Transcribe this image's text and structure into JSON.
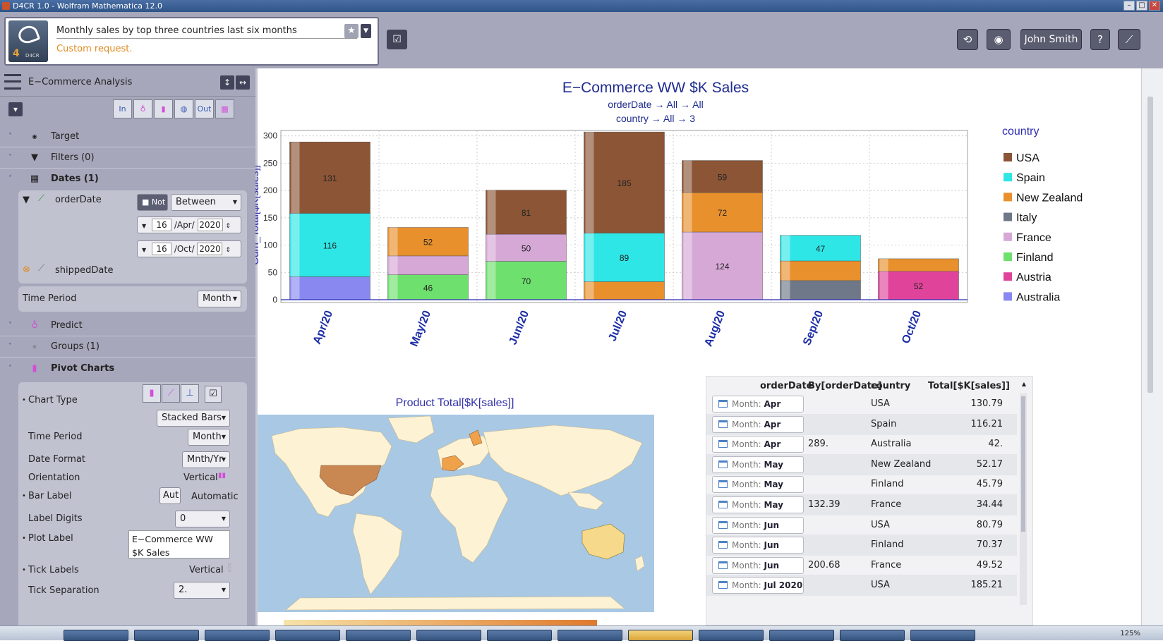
{
  "window": {
    "title": "D4CR 1.0 - Wolfram Mathematica 12.0"
  },
  "request": {
    "text": "Monthly sales by top three countries last six months",
    "subtitle": "Custom request.",
    "logo_label": "4",
    "logo_sub": "D4CR"
  },
  "toolbar": {
    "user": "John Smith",
    "help": "?"
  },
  "panel": {
    "title": "E−Commerce Analysis",
    "tool_labels": [
      "In",
      "",
      "",
      "",
      "Out",
      ""
    ]
  },
  "sections": {
    "target": "Target",
    "filters": "Filters (0)",
    "dates": "Dates (1)",
    "predict": "Predict",
    "groups": "Groups (1)",
    "pivot": "Pivot Charts"
  },
  "dates": {
    "field1": "orderDate",
    "not_label": "Not",
    "op": "Between",
    "start": {
      "day": "16",
      "month": "Apr",
      "year": "2020"
    },
    "end": {
      "day": "16",
      "month": "Oct",
      "year": "2020"
    },
    "field2": "shippedDate",
    "time_period_label": "Time Period",
    "time_period": "Month",
    "sep": "/"
  },
  "pivot": {
    "chart_type_label": "Chart Type",
    "chart_type": "Stacked Bars",
    "time_period_label": "Time Period",
    "time_period": "Month",
    "date_format_label": "Date Format",
    "date_format": "Mnth/Yr",
    "orientation_label": "Orientation",
    "orientation": "Vertical",
    "bar_label_label": "Bar Label",
    "bar_label_btn": "Aut",
    "bar_label": "Automatic",
    "label_digits_label": "Label Digits",
    "label_digits": "0",
    "plot_label_label": "Plot Label",
    "plot_label": "E−Commerce WW $K Sales",
    "tick_labels_label": "Tick Labels",
    "tick_labels": "Vertical",
    "tick_sep_label": "Tick Separation",
    "tick_sep": "2."
  },
  "chart_data": {
    "type": "bar",
    "stacked": true,
    "title": "E−Commerce WW $K Sales",
    "subtitle1": "orderDate → All → All",
    "subtitle2": "country → All → 3",
    "ylabel": "Cum_Total[$K[sales]]",
    "xlabel": "",
    "ylim": [
      0,
      310
    ],
    "yticks": [
      0,
      50,
      100,
      150,
      200,
      250,
      300
    ],
    "categories": [
      "Apr/20",
      "May/20",
      "Jun/20",
      "Jul/20",
      "Aug/20",
      "Sep/20",
      "Oct/20"
    ],
    "legend_title": "country",
    "legend": [
      "USA",
      "Spain",
      "New Zealand",
      "Italy",
      "France",
      "Finland",
      "Austria",
      "Australia"
    ],
    "colors": {
      "USA": "#8b5536",
      "Spain": "#2ee6e6",
      "New Zealand": "#e8902c",
      "Italy": "#6e7888",
      "France": "#d6a8d6",
      "Finland": "#6ee06e",
      "Austria": "#e0449a",
      "Australia": "#8888f0"
    },
    "stacks": [
      [
        {
          "s": "Australia",
          "v": 42
        },
        {
          "s": "Spain",
          "v": 116.21,
          "label": "116"
        },
        {
          "s": "USA",
          "v": 130.79,
          "label": "131"
        }
      ],
      [
        {
          "s": "Finland",
          "v": 45.79,
          "label": "46"
        },
        {
          "s": "France",
          "v": 34.44
        },
        {
          "s": "New Zealand",
          "v": 52.17,
          "label": "52"
        }
      ],
      [
        {
          "s": "Finland",
          "v": 70.37,
          "label": "70"
        },
        {
          "s": "France",
          "v": 49.52,
          "label": "50"
        },
        {
          "s": "USA",
          "v": 80.79,
          "label": "81"
        }
      ],
      [
        {
          "s": "New Zealand",
          "v": 33
        },
        {
          "s": "Spain",
          "v": 89,
          "label": "89"
        },
        {
          "s": "USA",
          "v": 185.21,
          "label": "185"
        }
      ],
      [
        {
          "s": "France",
          "v": 124,
          "label": "124"
        },
        {
          "s": "New Zealand",
          "v": 72,
          "label": "72"
        },
        {
          "s": "USA",
          "v": 59,
          "label": "59"
        }
      ],
      [
        {
          "s": "Italy",
          "v": 35
        },
        {
          "s": "New Zealand",
          "v": 36
        },
        {
          "s": "Spain",
          "v": 47,
          "label": "47"
        }
      ],
      [
        {
          "s": "Austria",
          "v": 52,
          "label": "52"
        },
        {
          "s": "New Zealand",
          "v": 23
        }
      ]
    ]
  },
  "map": {
    "title": "Product Total[$K[sales]]"
  },
  "table": {
    "headers": [
      "orderDate",
      "By[orderDate]",
      "country",
      "Total[$K[sales]]"
    ],
    "month_prefix": "Month:",
    "rows": [
      {
        "date": "Apr 2020",
        "by": "",
        "country": "USA",
        "total": "130.79"
      },
      {
        "date": "Apr 2020",
        "by": "",
        "country": "Spain",
        "total": "116.21"
      },
      {
        "date": "Apr 2020",
        "by": "289.",
        "country": "Australia",
        "total": "42."
      },
      {
        "date": "May 2020",
        "by": "",
        "country": "New Zealand",
        "total": "52.17"
      },
      {
        "date": "May 2020",
        "by": "",
        "country": "Finland",
        "total": "45.79"
      },
      {
        "date": "May 2020",
        "by": "132.39",
        "country": "France",
        "total": "34.44"
      },
      {
        "date": "Jun 2020",
        "by": "",
        "country": "USA",
        "total": "80.79"
      },
      {
        "date": "Jun 2020",
        "by": "",
        "country": "Finland",
        "total": "70.37"
      },
      {
        "date": "Jun 2020",
        "by": "200.68",
        "country": "France",
        "total": "49.52"
      },
      {
        "date": "Jul 2020",
        "by": "",
        "country": "USA",
        "total": "185.21"
      }
    ]
  },
  "status": {
    "zoom": "125%"
  }
}
